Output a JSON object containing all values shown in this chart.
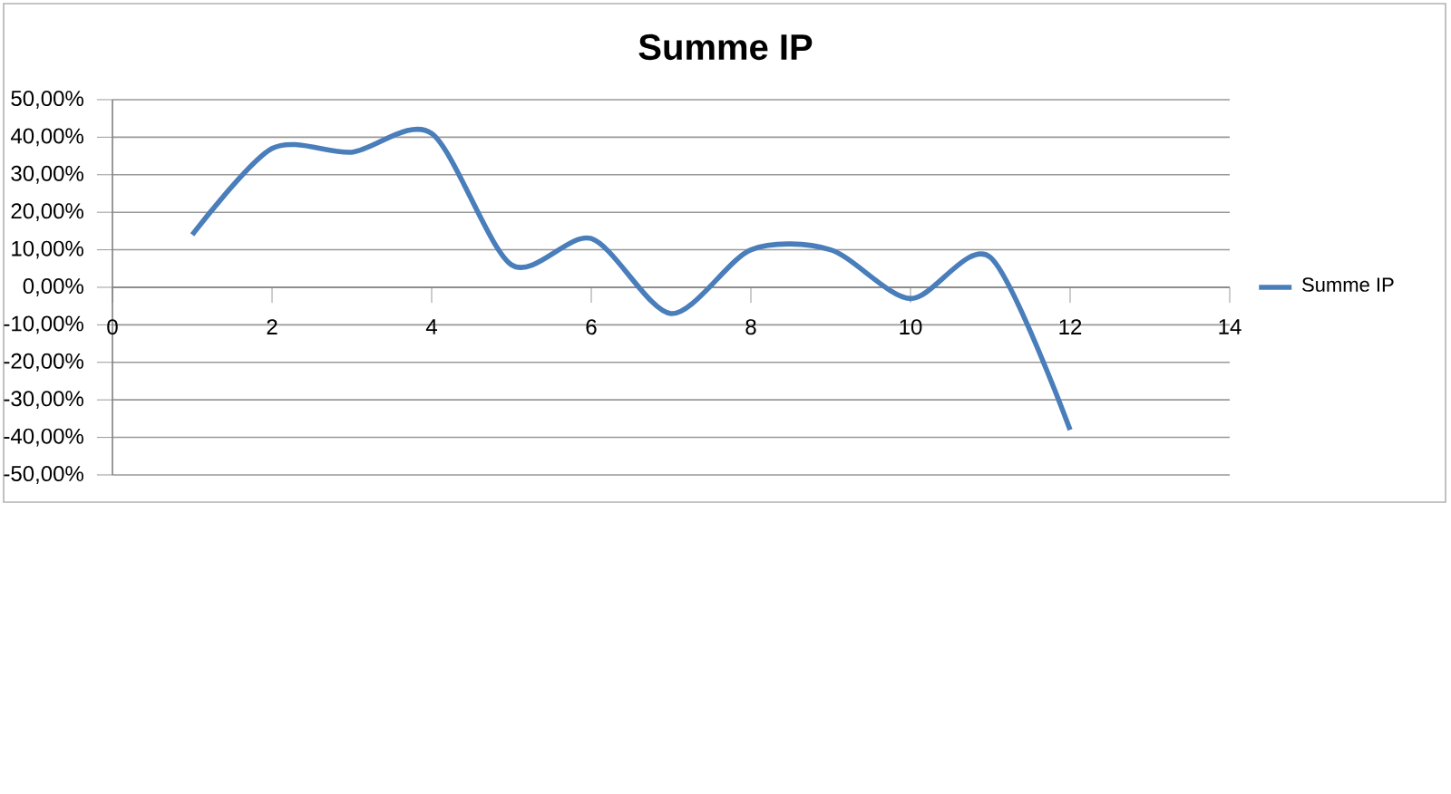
{
  "chart_data": {
    "type": "line",
    "title": "Summe IP",
    "x": [
      1,
      2,
      3,
      4,
      5,
      6,
      7,
      8,
      9,
      10,
      11,
      12
    ],
    "series": [
      {
        "name": "Summe IP",
        "color": "#4a7ebb",
        "values": [
          14,
          37,
          36,
          41,
          6,
          13,
          -7,
          10,
          10,
          -3,
          8,
          -38
        ]
      }
    ],
    "xlim": [
      0,
      14
    ],
    "xticks": [
      0,
      2,
      4,
      6,
      8,
      10,
      12,
      14
    ],
    "ylim": [
      -50,
      50
    ],
    "yticks": [
      {
        "value": -50,
        "label": "-50,00%"
      },
      {
        "value": -40,
        "label": "-40,00%"
      },
      {
        "value": -30,
        "label": "-30,00%"
      },
      {
        "value": -20,
        "label": "-20,00%"
      },
      {
        "value": -10,
        "label": "-10,00%"
      },
      {
        "value": 0,
        "label": "0,00%"
      },
      {
        "value": 10,
        "label": "10,00%"
      },
      {
        "value": 20,
        "label": "20,00%"
      },
      {
        "value": 30,
        "label": "30,00%"
      },
      {
        "value": 40,
        "label": "40,00%"
      },
      {
        "value": 50,
        "label": "50,00%"
      }
    ],
    "grid": "y",
    "legend": "right"
  }
}
